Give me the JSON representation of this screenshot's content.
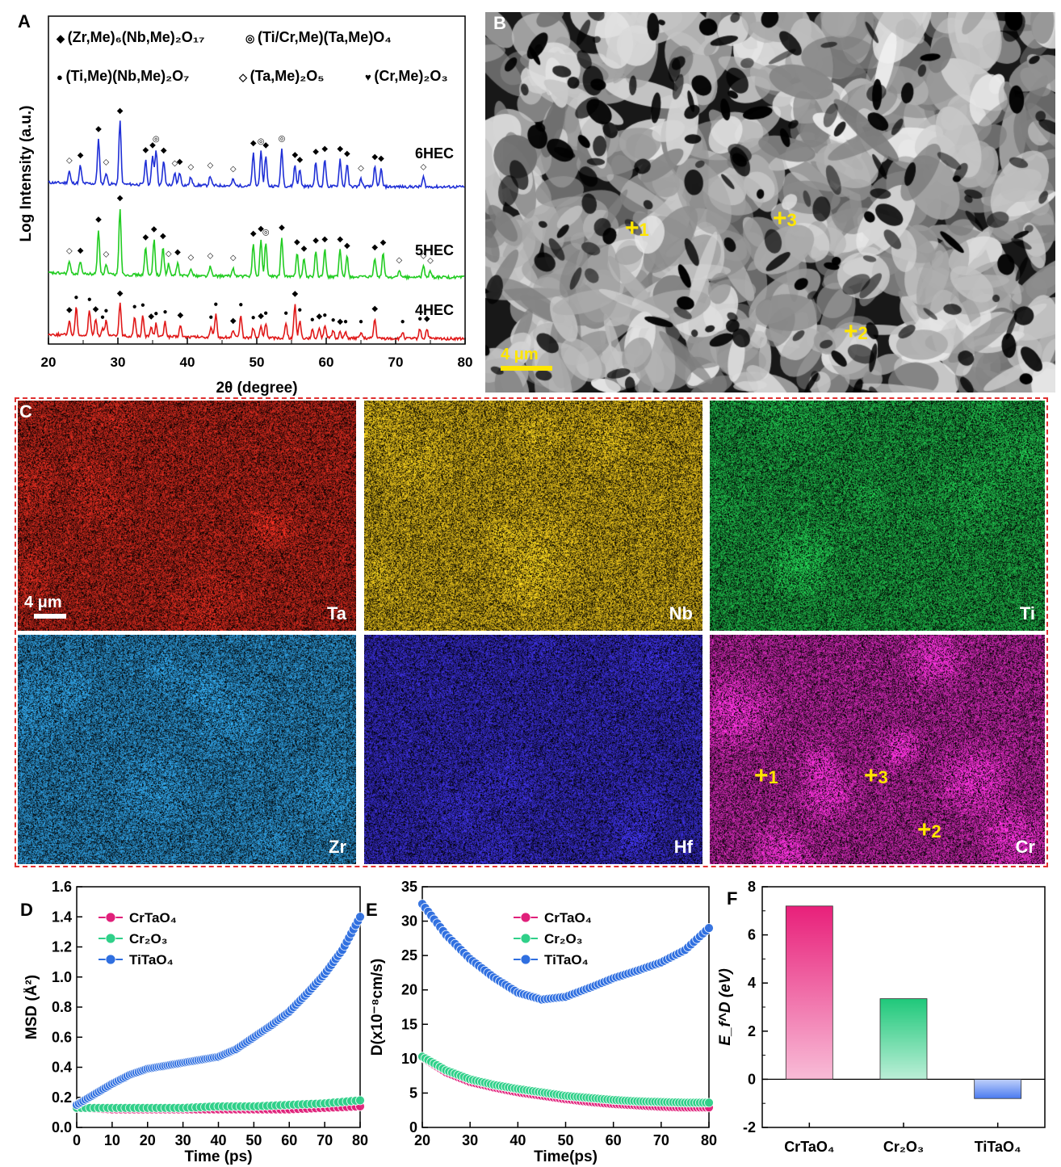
{
  "panelA": {
    "label": "A",
    "ylabel": "Log Intensity (a.u.)",
    "xlabel": "2θ (degree)",
    "xticks": [
      "20",
      "30",
      "40",
      "50",
      "60",
      "70",
      "80"
    ],
    "legend": [
      {
        "symbol": "◆",
        "text": "(Zr,Me)₆(Nb,Me)₂O₁₇"
      },
      {
        "symbol": "◎",
        "text": "(Ti/Cr,Me)(Ta,Me)O₄"
      },
      {
        "symbol": "●",
        "text": "(Ti,Me)(Nb,Me)₂O₇"
      },
      {
        "symbol": "◇",
        "text": "(Ta,Me)₂O₅"
      },
      {
        "symbol": "♥",
        "text": "(Cr,Me)₂O₃"
      }
    ],
    "patterns": [
      {
        "name": "6HEC",
        "color": "#1f2fd6"
      },
      {
        "name": "5HEC",
        "color": "#22cc22"
      },
      {
        "name": "4HEC",
        "color": "#e01818"
      }
    ]
  },
  "panelB": {
    "label": "B",
    "scalebar": "4 μm",
    "markers": [
      "1",
      "3",
      "2"
    ]
  },
  "panelC": {
    "label": "C",
    "scalebar": "4 μm",
    "maps": [
      {
        "element": "Ta",
        "color": "#d42a1e"
      },
      {
        "element": "Nb",
        "color": "#e8c21c"
      },
      {
        "element": "Ti",
        "color": "#1fb84a"
      },
      {
        "element": "Zr",
        "color": "#2f9ee0"
      },
      {
        "element": "Hf",
        "color": "#3a2fd8"
      },
      {
        "element": "Cr",
        "color": "#d42ab8"
      }
    ],
    "cr_markers": [
      "1",
      "3",
      "2"
    ]
  },
  "chart_data": [
    {
      "panel": "D",
      "type": "scatter",
      "xlabel": "Time (ps)",
      "ylabel": "MSD (Å²)",
      "xlim": [
        0,
        80
      ],
      "ylim": [
        0,
        1.6
      ],
      "xticks": [
        "0",
        "10",
        "20",
        "30",
        "40",
        "50",
        "60",
        "70",
        "80"
      ],
      "yticks": [
        "0.0",
        "0.2",
        "0.4",
        "0.6",
        "0.8",
        "1.0",
        "1.2",
        "1.4",
        "1.6"
      ],
      "series": [
        {
          "name": "CrTaO₄",
          "color": "#e0207a",
          "x": [
            0,
            10,
            20,
            30,
            40,
            50,
            60,
            70,
            80
          ],
          "values": [
            0.13,
            0.12,
            0.12,
            0.12,
            0.12,
            0.12,
            0.12,
            0.13,
            0.14
          ]
        },
        {
          "name": "Cr₂O₃",
          "color": "#2fd089",
          "x": [
            0,
            10,
            20,
            30,
            40,
            50,
            60,
            70,
            80
          ],
          "values": [
            0.13,
            0.13,
            0.13,
            0.13,
            0.14,
            0.14,
            0.15,
            0.16,
            0.18
          ]
        },
        {
          "name": "TiTaO₄",
          "color": "#2f6fe0",
          "x": [
            0,
            5,
            10,
            15,
            20,
            25,
            30,
            35,
            40,
            45,
            50,
            55,
            60,
            65,
            70,
            75,
            80
          ],
          "values": [
            0.15,
            0.22,
            0.29,
            0.35,
            0.39,
            0.41,
            0.43,
            0.45,
            0.47,
            0.52,
            0.6,
            0.68,
            0.77,
            0.89,
            1.02,
            1.18,
            1.4
          ]
        }
      ]
    },
    {
      "panel": "E",
      "type": "scatter",
      "xlabel": "Time(ps)",
      "ylabel": "D(x10⁻⁸cm/s)",
      "xlim": [
        20,
        80
      ],
      "ylim": [
        0,
        35
      ],
      "xticks": [
        "20",
        "30",
        "40",
        "50",
        "60",
        "70",
        "80"
      ],
      "yticks": [
        "0",
        "5",
        "10",
        "15",
        "20",
        "25",
        "30",
        "35"
      ],
      "series": [
        {
          "name": "CrTaO₄",
          "color": "#e0207a",
          "x": [
            20,
            25,
            30,
            35,
            40,
            45,
            50,
            55,
            60,
            65,
            70,
            75,
            80
          ],
          "values": [
            10.2,
            8.0,
            6.6,
            5.8,
            5.1,
            4.6,
            4.1,
            3.7,
            3.4,
            3.2,
            3.0,
            2.9,
            2.9
          ]
        },
        {
          "name": "Cr₂O₃",
          "color": "#2fd089",
          "x": [
            20,
            25,
            30,
            35,
            40,
            45,
            50,
            55,
            60,
            65,
            70,
            75,
            80
          ],
          "values": [
            10.3,
            8.3,
            7.0,
            6.2,
            5.6,
            5.1,
            4.6,
            4.3,
            4.0,
            3.8,
            3.7,
            3.6,
            3.6
          ]
        },
        {
          "name": "TiTaO₄",
          "color": "#2f6fe0",
          "x": [
            20,
            25,
            30,
            35,
            40,
            45,
            50,
            55,
            60,
            65,
            70,
            75,
            80
          ],
          "values": [
            32.5,
            28.0,
            24.5,
            21.8,
            19.6,
            18.6,
            19.0,
            20.3,
            21.7,
            22.8,
            24.0,
            25.8,
            29.0
          ]
        }
      ]
    },
    {
      "panel": "F",
      "type": "bar",
      "ylabel": "E_f^D (eV)",
      "ylim": [
        -2,
        8
      ],
      "yticks": [
        "-2",
        "0",
        "2",
        "4",
        "6",
        "8"
      ],
      "categories": [
        "CrTaO₄",
        "Cr₂O₃",
        "TiTaO₄"
      ],
      "values": [
        7.2,
        3.35,
        -0.8
      ],
      "colors": [
        "#e8207a",
        "#1fc87a",
        "#4a7af0"
      ]
    }
  ]
}
